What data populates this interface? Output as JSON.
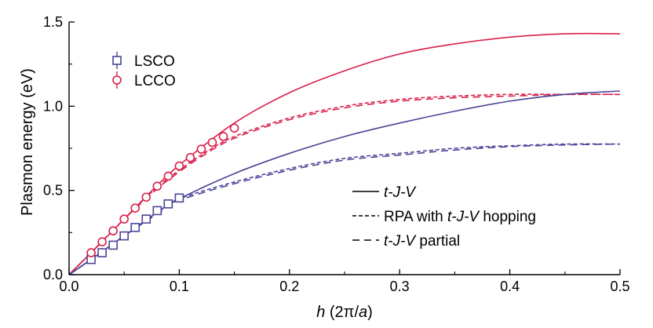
{
  "chart_data": {
    "type": "line",
    "xlabel_var": "h",
    "xlabel_unit": " (2π/",
    "xlabel_unit_var": "a",
    "xlabel_close": ")",
    "ylabel": "Plasmon energy (eV)",
    "xlim": [
      0.0,
      0.5
    ],
    "ylim": [
      0.0,
      1.5
    ],
    "xticks": [
      0.0,
      0.1,
      0.2,
      0.3,
      0.4,
      0.5
    ],
    "xtick_labels": [
      "0.0",
      "0.1",
      "0.2",
      "0.3",
      "0.4",
      "0.5"
    ],
    "yticks": [
      0.0,
      0.5,
      1.0,
      1.5
    ],
    "ytick_labels": [
      "0.0",
      "0.5",
      "1.0",
      "1.5"
    ],
    "colors": {
      "LSCO": "#4a4596",
      "LCCO": "#d81f4a",
      "axis": "#000000"
    },
    "scatter": [
      {
        "name": "LSCO",
        "marker": "square",
        "color": "#4a4596",
        "x": [
          0.02,
          0.03,
          0.04,
          0.05,
          0.06,
          0.07,
          0.08,
          0.09,
          0.1
        ],
        "y": [
          0.09,
          0.13,
          0.175,
          0.23,
          0.28,
          0.33,
          0.38,
          0.42,
          0.455
        ]
      },
      {
        "name": "LCCO",
        "marker": "circle",
        "color": "#d81f4a",
        "x": [
          0.02,
          0.03,
          0.04,
          0.05,
          0.06,
          0.07,
          0.08,
          0.09,
          0.1,
          0.11,
          0.12,
          0.13,
          0.14,
          0.15
        ],
        "y": [
          0.13,
          0.195,
          0.26,
          0.33,
          0.395,
          0.46,
          0.525,
          0.585,
          0.645,
          0.695,
          0.745,
          0.785,
          0.82,
          0.87
        ]
      }
    ],
    "series": [
      {
        "name": "LCCO t-J-V",
        "style": "solid",
        "color": "#d81f4a",
        "x": [
          0,
          0.02,
          0.05,
          0.08,
          0.1,
          0.15,
          0.2,
          0.25,
          0.3,
          0.35,
          0.4,
          0.45,
          0.5
        ],
        "y": [
          0,
          0.13,
          0.33,
          0.53,
          0.65,
          0.9,
          1.08,
          1.21,
          1.31,
          1.37,
          1.41,
          1.43,
          1.43
        ]
      },
      {
        "name": "LCCO RPA with t-J-V hopping",
        "style": "dash",
        "color": "#d81f4a",
        "x": [
          0,
          0.02,
          0.05,
          0.08,
          0.1,
          0.12,
          0.15,
          0.2,
          0.25,
          0.3,
          0.35,
          0.4,
          0.45,
          0.5
        ],
        "y": [
          0,
          0.13,
          0.33,
          0.52,
          0.62,
          0.71,
          0.82,
          0.93,
          1.0,
          1.04,
          1.06,
          1.07,
          1.07,
          1.07
        ]
      },
      {
        "name": "LCCO t-J-V partial",
        "style": "longdash",
        "color": "#d81f4a",
        "x": [
          0,
          0.02,
          0.05,
          0.08,
          0.1,
          0.12,
          0.15,
          0.2,
          0.25,
          0.3,
          0.35,
          0.4,
          0.45,
          0.5
        ],
        "y": [
          0,
          0.13,
          0.33,
          0.51,
          0.61,
          0.7,
          0.81,
          0.92,
          0.99,
          1.03,
          1.05,
          1.06,
          1.07,
          1.07
        ]
      },
      {
        "name": "LSCO t-J-V",
        "style": "solid",
        "color": "#4a4596",
        "x": [
          0,
          0.02,
          0.05,
          0.08,
          0.1,
          0.15,
          0.2,
          0.25,
          0.3,
          0.35,
          0.4,
          0.45,
          0.5
        ],
        "y": [
          0,
          0.09,
          0.23,
          0.37,
          0.45,
          0.6,
          0.72,
          0.82,
          0.9,
          0.97,
          1.03,
          1.07,
          1.09
        ]
      },
      {
        "name": "LSCO RPA with t-J-V hopping",
        "style": "dash",
        "color": "#4a4596",
        "x": [
          0,
          0.02,
          0.05,
          0.08,
          0.1,
          0.15,
          0.2,
          0.25,
          0.3,
          0.35,
          0.4,
          0.45,
          0.5
        ],
        "y": [
          0,
          0.09,
          0.23,
          0.37,
          0.45,
          0.55,
          0.63,
          0.69,
          0.72,
          0.75,
          0.765,
          0.775,
          0.775
        ]
      },
      {
        "name": "LSCO t-J-V partial",
        "style": "longdash",
        "color": "#4a4596",
        "x": [
          0,
          0.02,
          0.05,
          0.08,
          0.1,
          0.15,
          0.2,
          0.25,
          0.3,
          0.35,
          0.4,
          0.45,
          0.5
        ],
        "y": [
          0,
          0.09,
          0.23,
          0.36,
          0.44,
          0.54,
          0.62,
          0.68,
          0.71,
          0.74,
          0.76,
          0.77,
          0.775
        ]
      }
    ],
    "legend_markers": [
      {
        "label": "LSCO",
        "marker": "square",
        "color": "#4a4596"
      },
      {
        "label": "LCCO",
        "marker": "circle",
        "color": "#d81f4a"
      }
    ],
    "legend_lines": [
      {
        "style": "solid",
        "parts": [
          {
            "t": "t-J-V",
            "i": true
          }
        ]
      },
      {
        "style": "dash",
        "parts": [
          {
            "t": "RPA with ",
            "i": false
          },
          {
            "t": "t-J-V",
            "i": true
          },
          {
            "t": " hopping",
            "i": false
          }
        ]
      },
      {
        "style": "longdash",
        "parts": [
          {
            "t": "t-J-V",
            "i": true
          },
          {
            "t": " partial",
            "i": false
          }
        ]
      }
    ],
    "legend_placement": "marker legend top-left; line-style legend bottom-right"
  }
}
